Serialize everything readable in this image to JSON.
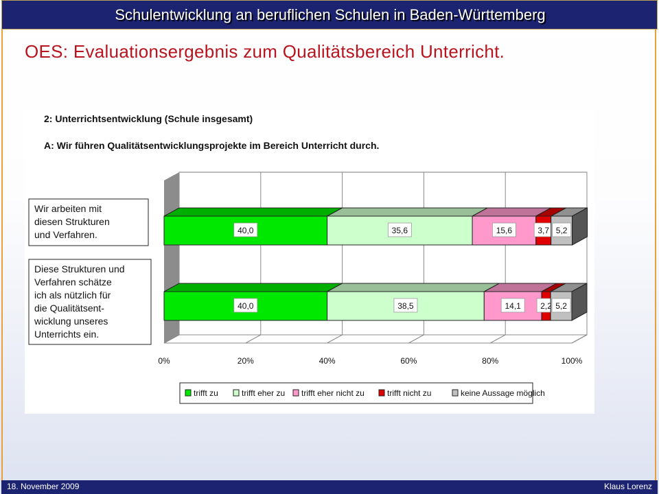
{
  "header": {
    "title": "Schulentwicklung an beruflichen Schulen in Baden-Württemberg"
  },
  "subtitle": "OES: Evaluationsergebnis zum Qualitätsbereich Unterricht.",
  "footer": {
    "date": "18. November 2009",
    "author": "Klaus Lorenz"
  },
  "chart_data": {
    "type": "bar",
    "orientation": "horizontal",
    "stacked": true,
    "percent_stacked": true,
    "title": "2: Unterrichtsentwicklung (Schule insgesamt)",
    "subtitle": "A: Wir führen Qualitätsentwicklungsprojekte im Bereich Unterricht durch.",
    "categories": [
      "Wir arbeiten mit\ndiesen Strukturen\nund Verfahren.",
      "Diese Strukturen und\nVerfahren schätze\nich als nützlich für\ndie Qualitätsent-\nwicklung unseres\nUnterrichts ein."
    ],
    "series": [
      {
        "name": "trifft zu",
        "color": "#00e800",
        "values": [
          40.0,
          40.0
        ],
        "labels": [
          "40,0",
          "40,0"
        ]
      },
      {
        "name": "trifft eher zu",
        "color": "#ccffcc",
        "values": [
          35.6,
          38.5
        ],
        "labels": [
          "35,6",
          "38,5"
        ]
      },
      {
        "name": "trifft eher nicht zu",
        "color": "#ff99cc",
        "values": [
          15.6,
          14.1
        ],
        "labels": [
          "15,6",
          "14,1"
        ]
      },
      {
        "name": "trifft nicht zu",
        "color": "#e00000",
        "values": [
          3.7,
          2.2
        ],
        "labels": [
          "3,7",
          "2,2"
        ]
      },
      {
        "name": "keine Aussage möglich",
        "color": "#c0c0c0",
        "values": [
          5.2,
          5.2
        ],
        "labels": [
          "5,2",
          "5,2"
        ]
      }
    ],
    "x_ticks": [
      "0%",
      "20%",
      "40%",
      "60%",
      "80%",
      "100%"
    ],
    "xlim": [
      0,
      100
    ],
    "grid": true,
    "legend": "bottom"
  }
}
